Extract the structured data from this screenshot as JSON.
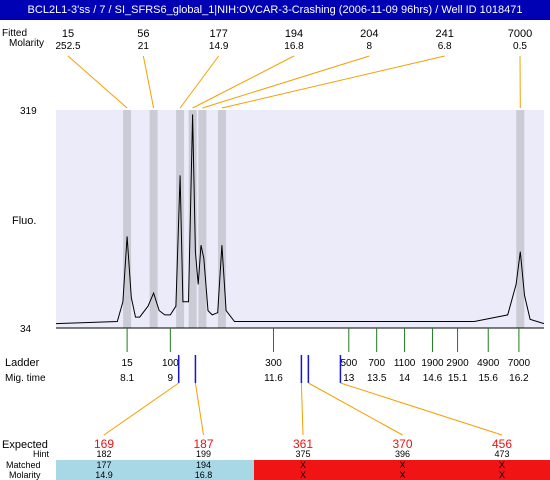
{
  "title": "BCL2L1-3'ss / 7 / SI_SFRS6_global_1|NIH:OVCAR-3-Crashing (2006-11-09 96hrs) / Well ID 1018471",
  "labels": {
    "top_row1": "Fitted",
    "top_row2": "Molarity",
    "fluo": "Fluo.",
    "ladder": "Ladder",
    "mig_time": "Mig. time",
    "expected": "Expected",
    "hint": "Hint",
    "matched": "Matched",
    "molarity": "Molarity"
  },
  "colors": {
    "title_bg": "#0000b4",
    "plot_bg": "#ebebfa",
    "peak_band": "#c8c8d2",
    "leader_orange": "#f5a000",
    "ladder_green": "#1e7a1e",
    "marker_blue": "#1414d2",
    "expected_red": "#e61414",
    "matched_bg": "#a8d8e6",
    "unmatched_bg": "#f01414"
  },
  "chart_data": {
    "type": "line",
    "y_ticks": [
      "319",
      "34"
    ],
    "ylim": [
      34,
      319
    ],
    "x": [
      2.2,
      2.55,
      3.0,
      3.5,
      4.5,
      4.9,
      5.7,
      6.3,
      7.3,
      10.5,
      14,
      16.3,
      17.5
    ],
    "trace": [
      {
        "x": 0,
        "y": 0.02
      },
      {
        "x": 2.2,
        "y": 0.03
      },
      {
        "x": 2.4,
        "y": 0.12
      },
      {
        "x": 2.55,
        "y": 0.42
      },
      {
        "x": 2.7,
        "y": 0.14
      },
      {
        "x": 2.85,
        "y": 0.05
      },
      {
        "x": 3.0,
        "y": 0.05
      },
      {
        "x": 3.3,
        "y": 0.1
      },
      {
        "x": 3.5,
        "y": 0.16
      },
      {
        "x": 3.7,
        "y": 0.08
      },
      {
        "x": 3.9,
        "y": 0.06
      },
      {
        "x": 4.1,
        "y": 0.06
      },
      {
        "x": 4.3,
        "y": 0.1
      },
      {
        "x": 4.45,
        "y": 0.7
      },
      {
        "x": 4.55,
        "y": 0.12
      },
      {
        "x": 4.75,
        "y": 0.12
      },
      {
        "x": 4.9,
        "y": 0.98
      },
      {
        "x": 5.0,
        "y": 0.35
      },
      {
        "x": 5.1,
        "y": 0.2
      },
      {
        "x": 5.2,
        "y": 0.38
      },
      {
        "x": 5.3,
        "y": 0.32
      },
      {
        "x": 5.45,
        "y": 0.08
      },
      {
        "x": 5.6,
        "y": 0.06
      },
      {
        "x": 5.8,
        "y": 0.07
      },
      {
        "x": 5.95,
        "y": 0.38
      },
      {
        "x": 6.1,
        "y": 0.08
      },
      {
        "x": 6.4,
        "y": 0.03
      },
      {
        "x": 9.0,
        "y": 0.03
      },
      {
        "x": 12.0,
        "y": 0.03
      },
      {
        "x": 15.0,
        "y": 0.03
      },
      {
        "x": 16.2,
        "y": 0.06
      },
      {
        "x": 16.5,
        "y": 0.2
      },
      {
        "x": 16.65,
        "y": 0.35
      },
      {
        "x": 16.8,
        "y": 0.15
      },
      {
        "x": 17.0,
        "y": 0.04
      },
      {
        "x": 17.5,
        "y": 0.02
      }
    ],
    "peaks": [
      {
        "size": "15",
        "molarity": "252.5",
        "x": 2.55
      },
      {
        "size": "56",
        "molarity": "21",
        "x": 3.5
      },
      {
        "size": "177",
        "molarity": "14.9",
        "x": 4.45
      },
      {
        "size": "194",
        "molarity": "16.8",
        "x": 4.9
      },
      {
        "size": "204",
        "molarity": "8",
        "x": 5.25
      },
      {
        "size": "241",
        "molarity": "6.8",
        "x": 5.95
      },
      {
        "size": "7000",
        "molarity": "0.5",
        "x": 16.65
      }
    ],
    "ladder": [
      {
        "size": "15",
        "time": "8.1",
        "x": 2.55
      },
      {
        "size": "100",
        "time": "9",
        "x": 4.1
      },
      {
        "size": "300",
        "time": "11.6",
        "x": 7.8
      },
      {
        "size": "500",
        "time": "13",
        "x": 10.5
      },
      {
        "size": "700",
        "time": "13.5",
        "x": 11.5
      },
      {
        "size": "1100",
        "time": "14",
        "x": 12.5
      },
      {
        "size": "1900",
        "time": "14.6",
        "x": 13.5
      },
      {
        "size": "2900",
        "time": "15.1",
        "x": 14.4
      },
      {
        "size": "4900",
        "time": "15.6",
        "x": 15.5
      },
      {
        "size": "7000",
        "time": "16.2",
        "x": 16.6
      }
    ],
    "expected": [
      {
        "expected": "169",
        "hint": "182",
        "matched": "177",
        "molarity": "14.9",
        "status": "matched",
        "marker_x": 4.4
      },
      {
        "expected": "187",
        "hint": "199",
        "matched": "194",
        "molarity": "16.8",
        "status": "matched",
        "marker_x": 5.0
      },
      {
        "expected": "361",
        "hint": "375",
        "matched": "X",
        "molarity": "X",
        "status": "unmatched",
        "marker_x": 8.8
      },
      {
        "expected": "370",
        "hint": "396",
        "matched": "X",
        "molarity": "X",
        "status": "unmatched",
        "marker_x": 9.05
      },
      {
        "expected": "456",
        "hint": "473",
        "matched": "X",
        "molarity": "X",
        "status": "unmatched",
        "marker_x": 10.2
      }
    ]
  }
}
